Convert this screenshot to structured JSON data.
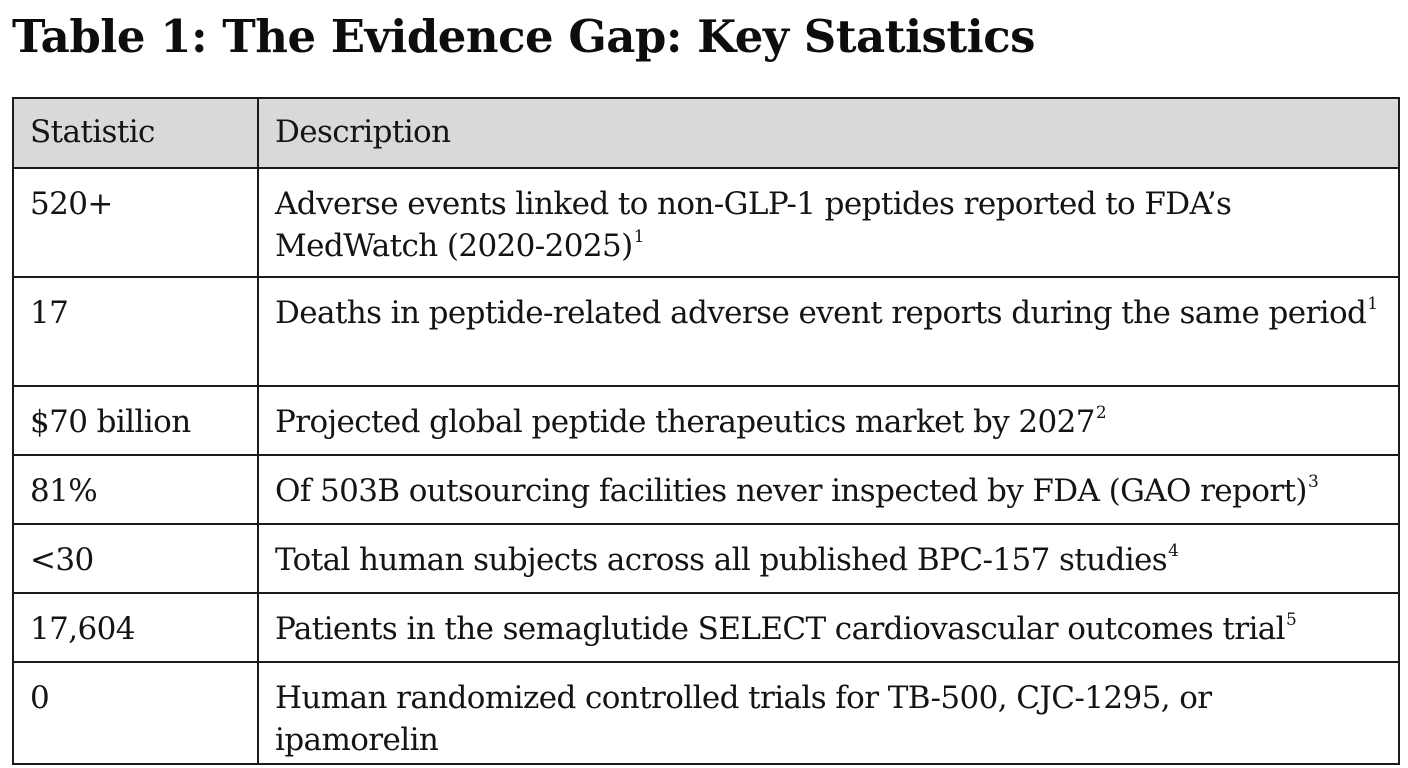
{
  "title": "Table 1: The Evidence Gap: Key Statistics",
  "table": {
    "headers": [
      "Statistic",
      "Description"
    ],
    "rows": [
      {
        "statistic": "520+",
        "description": "Adverse events linked to non-GLP-1 peptides reported to FDA’s MedWatch (2020-2025)",
        "footnote": "1"
      },
      {
        "statistic": "17",
        "description": "Deaths in peptide-related adverse event reports during the same period",
        "footnote": "1"
      },
      {
        "statistic": "$70 billion",
        "description": "Projected global peptide therapeutics market by 2027",
        "footnote": "2"
      },
      {
        "statistic": "81%",
        "description": "Of 503B outsourcing facilities never inspected by FDA (GAO report)",
        "footnote": "3"
      },
      {
        "statistic": "<30",
        "description": "Total human subjects across all published BPC-157 studies",
        "footnote": "4"
      },
      {
        "statistic": "17,604",
        "description": "Patients in the semaglutide SELECT cardiovascular outcomes trial",
        "footnote": "5"
      },
      {
        "statistic": "0",
        "description": "Human randomized controlled trials for TB-500, CJC-1295, or ipamorelin",
        "footnote": ""
      }
    ]
  }
}
